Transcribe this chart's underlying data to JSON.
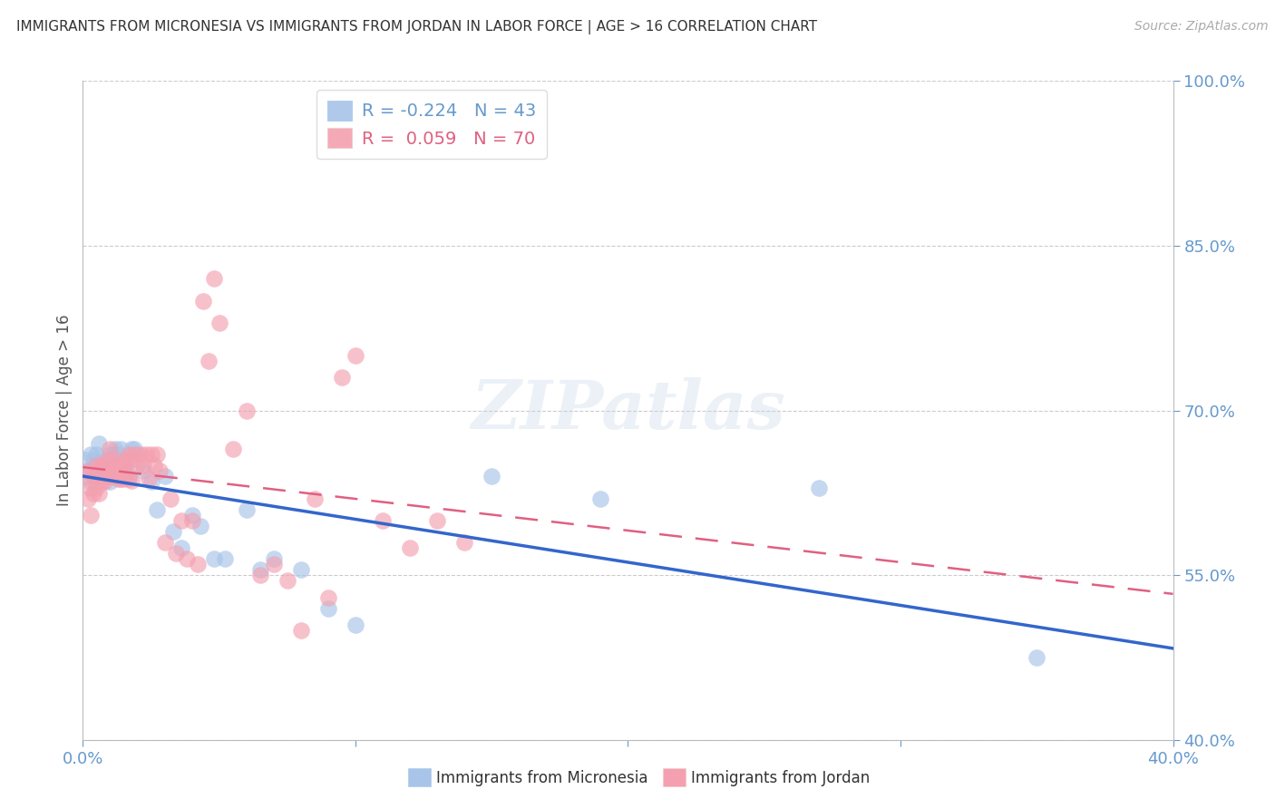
{
  "title": "IMMIGRANTS FROM MICRONESIA VS IMMIGRANTS FROM JORDAN IN LABOR FORCE | AGE > 16 CORRELATION CHART",
  "source": "Source: ZipAtlas.com",
  "ylabel": "In Labor Force | Age > 16",
  "xlim": [
    0.0,
    0.4
  ],
  "ylim": [
    0.4,
    1.0
  ],
  "yticks": [
    0.4,
    0.55,
    0.7,
    0.85,
    1.0
  ],
  "ytick_labels": [
    "40.0%",
    "55.0%",
    "70.0%",
    "85.0%",
    "100.0%"
  ],
  "xtick_positions": [
    0.0,
    0.1,
    0.2,
    0.3,
    0.4
  ],
  "xtick_labels": [
    "0.0%",
    "",
    "",
    "",
    "40.0%"
  ],
  "micronesia_color": "#a8c4e8",
  "jordan_color": "#f4a0b0",
  "micronesia_line_color": "#3366cc",
  "jordan_line_color": "#e06080",
  "micronesia_R": -0.224,
  "micronesia_N": 43,
  "jordan_R": 0.059,
  "jordan_N": 70,
  "watermark": "ZIPatlas",
  "background_color": "#ffffff",
  "grid_color": "#cccccc",
  "title_color": "#333333",
  "right_axis_color": "#6699cc",
  "legend_label_mic": "R = -0.224   N = 43",
  "legend_label_jor": "R =  0.059   N = 70",
  "bottom_label_mic": "Immigrants from Micronesia",
  "bottom_label_jor": "Immigrants from Jordan",
  "micronesia_x": [
    0.001,
    0.002,
    0.003,
    0.003,
    0.004,
    0.005,
    0.005,
    0.006,
    0.007,
    0.008,
    0.009,
    0.01,
    0.01,
    0.011,
    0.012,
    0.013,
    0.014,
    0.015,
    0.016,
    0.017,
    0.018,
    0.019,
    0.02,
    0.022,
    0.025,
    0.027,
    0.03,
    0.033,
    0.036,
    0.04,
    0.043,
    0.048,
    0.052,
    0.06,
    0.065,
    0.07,
    0.08,
    0.09,
    0.1,
    0.15,
    0.19,
    0.27,
    0.35
  ],
  "micronesia_y": [
    0.655,
    0.645,
    0.66,
    0.635,
    0.655,
    0.66,
    0.64,
    0.67,
    0.655,
    0.645,
    0.65,
    0.66,
    0.635,
    0.66,
    0.665,
    0.66,
    0.665,
    0.65,
    0.65,
    0.64,
    0.665,
    0.665,
    0.66,
    0.645,
    0.635,
    0.61,
    0.64,
    0.59,
    0.575,
    0.605,
    0.595,
    0.565,
    0.565,
    0.61,
    0.555,
    0.565,
    0.555,
    0.52,
    0.505,
    0.64,
    0.62,
    0.63,
    0.475
  ],
  "jordan_x": [
    0.001,
    0.002,
    0.002,
    0.003,
    0.003,
    0.004,
    0.004,
    0.005,
    0.005,
    0.006,
    0.006,
    0.007,
    0.007,
    0.008,
    0.008,
    0.009,
    0.009,
    0.01,
    0.01,
    0.011,
    0.011,
    0.012,
    0.012,
    0.013,
    0.013,
    0.014,
    0.014,
    0.015,
    0.015,
    0.016,
    0.016,
    0.017,
    0.017,
    0.018,
    0.018,
    0.019,
    0.02,
    0.021,
    0.022,
    0.023,
    0.024,
    0.025,
    0.026,
    0.027,
    0.028,
    0.03,
    0.032,
    0.034,
    0.036,
    0.038,
    0.04,
    0.042,
    0.044,
    0.046,
    0.048,
    0.05,
    0.055,
    0.06,
    0.065,
    0.07,
    0.075,
    0.08,
    0.085,
    0.09,
    0.095,
    0.1,
    0.11,
    0.12,
    0.13,
    0.14
  ],
  "jordan_y": [
    0.64,
    0.645,
    0.62,
    0.63,
    0.605,
    0.64,
    0.625,
    0.65,
    0.63,
    0.645,
    0.625,
    0.65,
    0.635,
    0.65,
    0.635,
    0.655,
    0.64,
    0.665,
    0.64,
    0.65,
    0.64,
    0.655,
    0.64,
    0.65,
    0.638,
    0.65,
    0.638,
    0.65,
    0.638,
    0.655,
    0.64,
    0.66,
    0.638,
    0.655,
    0.636,
    0.66,
    0.65,
    0.66,
    0.65,
    0.66,
    0.638,
    0.66,
    0.65,
    0.66,
    0.645,
    0.58,
    0.62,
    0.57,
    0.6,
    0.565,
    0.6,
    0.56,
    0.8,
    0.745,
    0.82,
    0.78,
    0.665,
    0.7,
    0.55,
    0.56,
    0.545,
    0.5,
    0.62,
    0.53,
    0.73,
    0.75,
    0.6,
    0.575,
    0.6,
    0.58
  ]
}
